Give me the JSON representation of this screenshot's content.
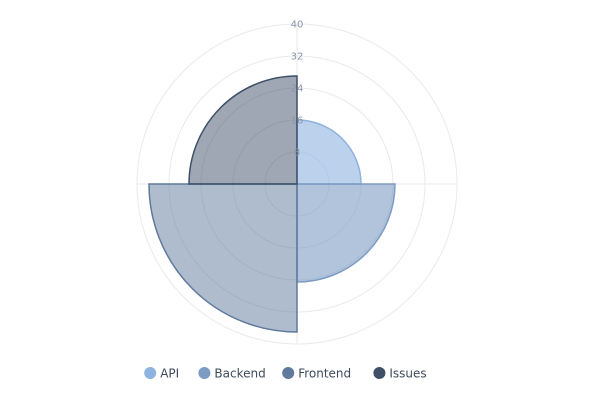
{
  "chart_data": {
    "type": "polar-area",
    "direction": "clockwise from top",
    "radial_axis": {
      "min": 0,
      "max": 40,
      "ticks": [
        "8",
        "16",
        "24",
        "32",
        "40"
      ]
    },
    "categories": [
      "API",
      "Backend",
      "Frontend",
      "Issues"
    ],
    "values": [
      16,
      24.5,
      37,
      27
    ],
    "colors": [
      "#8fb3e0",
      "#7d9cc4",
      "#5f7a9c",
      "#3d5068"
    ],
    "fills": [
      "rgba(143,179,224,0.6)",
      "rgba(125,156,196,0.6)",
      "rgba(95,122,156,0.5)",
      "rgba(61,80,104,0.5)"
    ],
    "grid": true,
    "legend": {
      "position": "bottom",
      "labels": [
        "API",
        "Backend",
        "Frontend",
        "Issues"
      ]
    }
  }
}
